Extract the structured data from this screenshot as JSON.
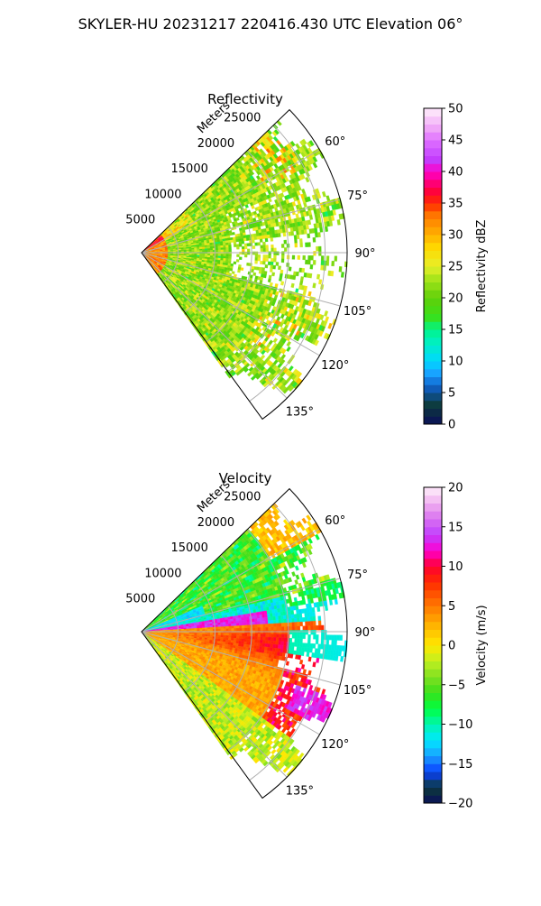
{
  "suptitle": "SKYLER-HU  20231217  220416.430 UTC Elevation 06°",
  "chart_data": [
    {
      "type": "heatmap",
      "subtype": "polar-sector-radar",
      "title": "Reflectivity",
      "radial_axis_label": "Meters",
      "radial_ticks": [
        "5000",
        "10000",
        "15000",
        "20000",
        "25000"
      ],
      "azimuth_ticks": [
        "60°",
        "75°",
        "90°",
        "105°",
        "120°",
        "135°"
      ],
      "azimuth_range_deg": [
        46,
        144
      ],
      "range_max_m": 28000,
      "grid": true,
      "colorbar": {
        "label": "Reflectivity dBZ",
        "range": [
          0,
          50
        ],
        "tick_labels": [
          "0",
          "5",
          "10",
          "15",
          "20",
          "25",
          "30",
          "35",
          "40",
          "45",
          "50"
        ]
      },
      "colorscale": {
        "stops": [
          [
            0,
            "#0a0f5a"
          ],
          [
            3,
            "#0d3a3a"
          ],
          [
            6,
            "#1060c8"
          ],
          [
            8,
            "#1aa0ff"
          ],
          [
            10,
            "#00d8ff"
          ],
          [
            13,
            "#00f0c0"
          ],
          [
            15,
            "#00f58a"
          ],
          [
            17,
            "#3ae01a"
          ],
          [
            20,
            "#60d00a"
          ],
          [
            23,
            "#a6e41a"
          ],
          [
            25,
            "#e8ef28"
          ],
          [
            28,
            "#ffd800"
          ],
          [
            30,
            "#ffb000"
          ],
          [
            33,
            "#ff7a00"
          ],
          [
            35,
            "#ff2a00"
          ],
          [
            37,
            "#ff0040"
          ],
          [
            40,
            "#ff00c8"
          ],
          [
            42,
            "#c040ff"
          ],
          [
            45,
            "#e070ff"
          ],
          [
            47,
            "#f0a8f8"
          ],
          [
            50,
            "#fff0fa"
          ]
        ]
      }
    },
    {
      "type": "heatmap",
      "subtype": "polar-sector-radar",
      "title": "Velocity",
      "radial_axis_label": "Meters",
      "radial_ticks": [
        "5000",
        "10000",
        "15000",
        "20000",
        "25000"
      ],
      "azimuth_ticks": [
        "60°",
        "75°",
        "90°",
        "105°",
        "120°",
        "135°"
      ],
      "azimuth_range_deg": [
        46,
        144
      ],
      "range_max_m": 28000,
      "grid": true,
      "colorbar": {
        "label": "Velocity (m/s)",
        "range": [
          -20,
          20
        ],
        "tick_labels": [
          "−20",
          "−15",
          "−10",
          "−5",
          "0",
          "5",
          "10",
          "15",
          "20"
        ]
      },
      "colorscale": {
        "stops": [
          [
            -20,
            "#0a0f5a"
          ],
          [
            -18,
            "#0d3a3a"
          ],
          [
            -16,
            "#0a40ff"
          ],
          [
            -14,
            "#1aa0ff"
          ],
          [
            -12,
            "#00e8ff"
          ],
          [
            -10,
            "#00f5b0"
          ],
          [
            -8,
            "#00ff40"
          ],
          [
            -6,
            "#3ae01a"
          ],
          [
            -4,
            "#80e020"
          ],
          [
            -2,
            "#c0f020"
          ],
          [
            0,
            "#ffe800"
          ],
          [
            2,
            "#ffc000"
          ],
          [
            4,
            "#ff9000"
          ],
          [
            6,
            "#ff6000"
          ],
          [
            8,
            "#ff2a00"
          ],
          [
            10,
            "#ff0030"
          ],
          [
            12,
            "#ff00d0"
          ],
          [
            14,
            "#c040ff"
          ],
          [
            16,
            "#d870f0"
          ],
          [
            18,
            "#f0b0f0"
          ],
          [
            20,
            "#fff0fa"
          ]
        ]
      }
    }
  ]
}
